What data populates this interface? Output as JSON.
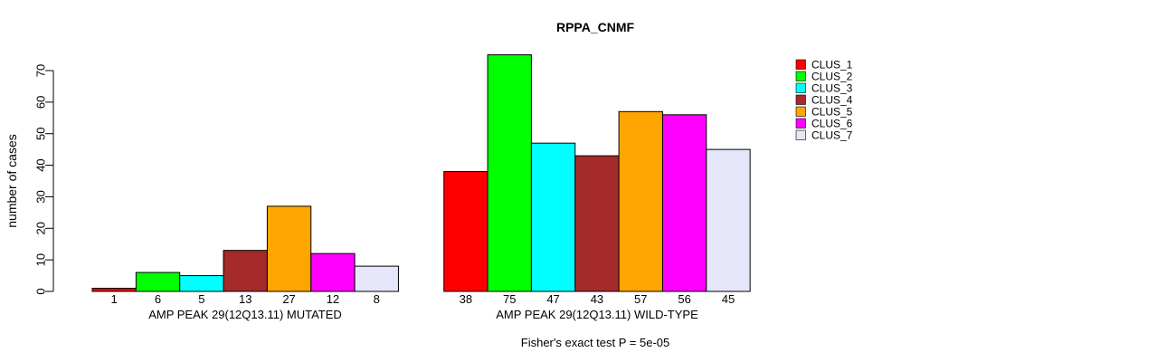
{
  "chart_data": {
    "type": "bar",
    "title": "RPPA_CNMF",
    "ylabel": "number of cases",
    "ylim": [
      0,
      70
    ],
    "yticks": [
      0,
      10,
      20,
      30,
      40,
      50,
      60,
      70
    ],
    "grid": false,
    "legend_position": "right",
    "categories": [
      "CLUS_1",
      "CLUS_2",
      "CLUS_3",
      "CLUS_4",
      "CLUS_5",
      "CLUS_6",
      "CLUS_7"
    ],
    "colors": [
      "#ff0000",
      "#00ff00",
      "#00ffff",
      "#a52a2a",
      "#ffa500",
      "#ff00ff",
      "#e6e6fa"
    ],
    "groups": [
      {
        "label": "AMP PEAK 29(12Q13.11) MUTATED",
        "values": [
          1,
          6,
          5,
          13,
          27,
          12,
          8
        ]
      },
      {
        "label": "AMP PEAK 29(12Q13.11) WILD-TYPE",
        "values": [
          38,
          75,
          47,
          43,
          57,
          56,
          45
        ]
      }
    ],
    "footnote": "Fisher's exact test P = 5e-05"
  }
}
